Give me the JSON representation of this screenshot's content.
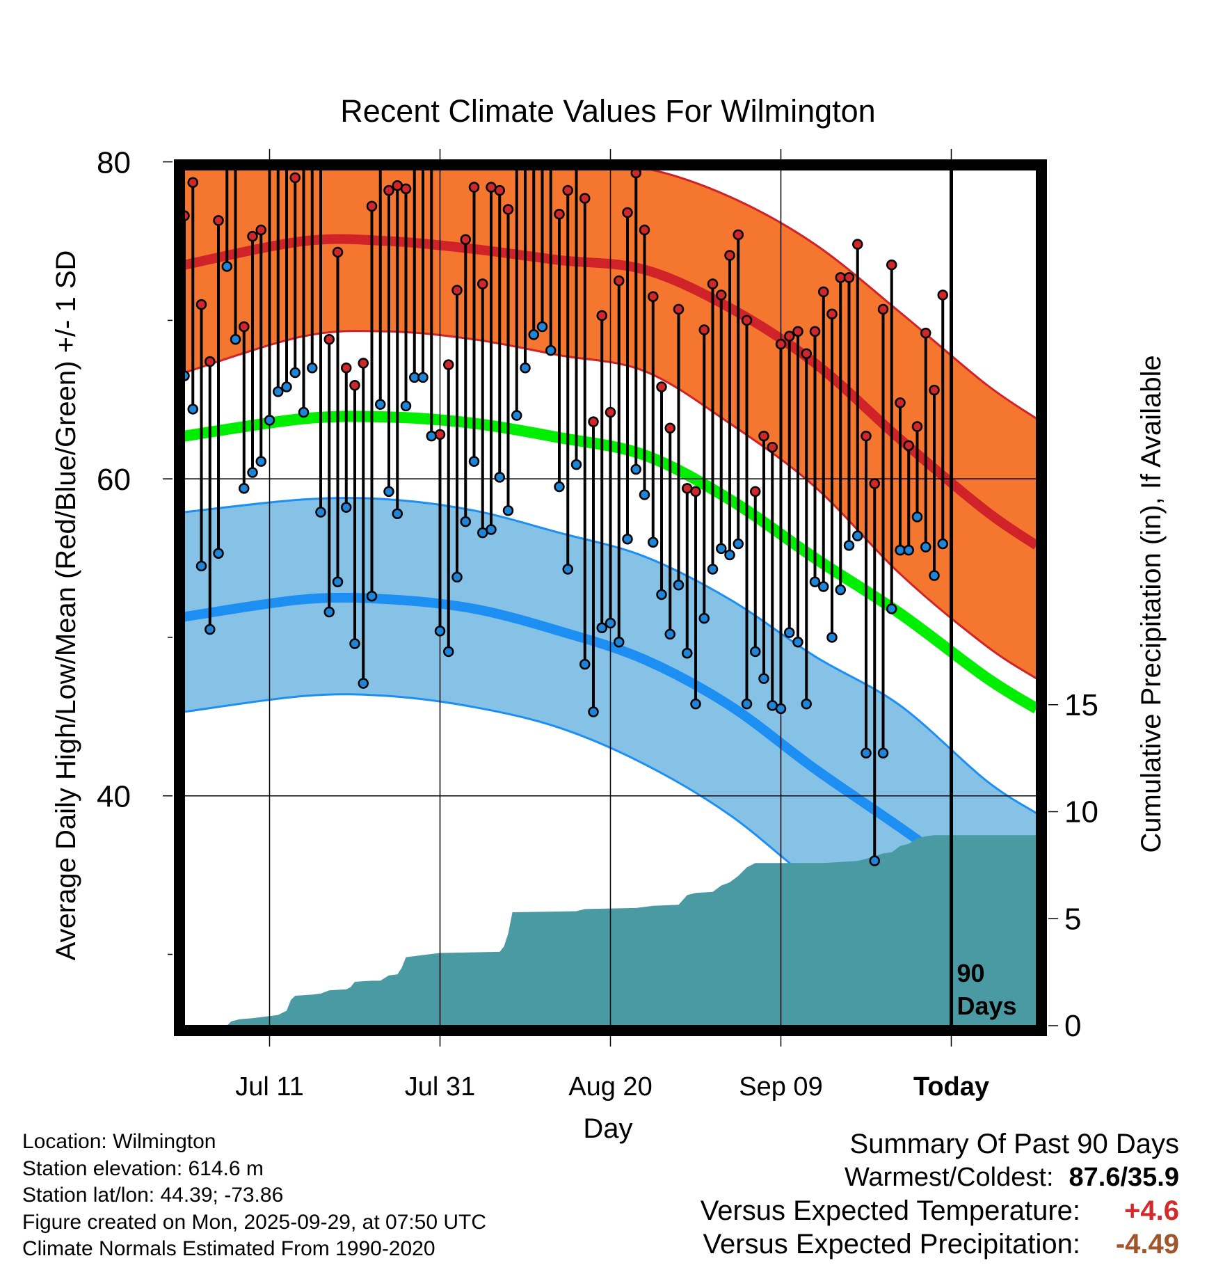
{
  "title": "Recent Climate Values For Wilmington",
  "chart_data": {
    "type": "line",
    "title": "Recent Climate Values For Wilmington",
    "xlabel": "Day",
    "ylabel": "Average Daily High/Low/Mean (Red/Blue/Green) +/- 1 SD",
    "y2label": "Cumulative Precipitation (in), If Available",
    "x_tick_labels": [
      "Jul 11",
      "Jul 31",
      "Aug 20",
      "Sep 09",
      "Today"
    ],
    "x_tick_days": [
      10,
      30,
      50,
      70,
      90
    ],
    "xlim": [
      0,
      100
    ],
    "ylim": [
      25.5,
      79.5
    ],
    "y_ticks": [
      40,
      60,
      80
    ],
    "y_tick_labels": [
      "40",
      "60",
      "80"
    ],
    "y2lim": [
      0,
      40
    ],
    "y2_ticks": [
      0,
      5,
      10,
      15
    ],
    "y2_tick_labels": [
      "0",
      "5",
      "10",
      "15"
    ],
    "today_day": 90,
    "today_annotation": [
      "90",
      "Days"
    ],
    "normals": {
      "high_mean": [
        [
          0,
          73.5
        ],
        [
          14,
          75.0
        ],
        [
          24,
          75.0
        ],
        [
          34,
          74.5
        ],
        [
          44,
          73.8
        ],
        [
          54,
          73.2
        ],
        [
          64,
          70.8
        ],
        [
          74,
          67.3
        ],
        [
          84,
          62.5
        ],
        [
          94,
          58.0
        ],
        [
          100,
          55.8
        ]
      ],
      "high_plus_sd": [
        [
          0,
          80.3
        ],
        [
          14,
          81.0
        ],
        [
          24,
          81.0
        ],
        [
          34,
          80.5
        ],
        [
          44,
          80.0
        ],
        [
          54,
          79.6
        ],
        [
          64,
          77.8
        ],
        [
          74,
          74.8
        ],
        [
          84,
          70.5
        ],
        [
          94,
          66.0
        ],
        [
          100,
          63.8
        ]
      ],
      "high_minus_sd": [
        [
          0,
          66.7
        ],
        [
          14,
          69.0
        ],
        [
          24,
          69.3
        ],
        [
          34,
          68.8
        ],
        [
          44,
          67.8
        ],
        [
          54,
          66.8
        ],
        [
          64,
          63.5
        ],
        [
          74,
          59.5
        ],
        [
          84,
          54.0
        ],
        [
          94,
          49.5
        ],
        [
          100,
          47.4
        ]
      ],
      "mean": [
        [
          0,
          62.7
        ],
        [
          14,
          63.8
        ],
        [
          24,
          63.9
        ],
        [
          34,
          63.5
        ],
        [
          44,
          62.6
        ],
        [
          54,
          61.5
        ],
        [
          64,
          58.7
        ],
        [
          74,
          55.0
        ],
        [
          84,
          51.5
        ],
        [
          94,
          47.5
        ],
        [
          100,
          45.5
        ]
      ],
      "low_mean": [
        [
          0,
          51.3
        ],
        [
          14,
          52.4
        ],
        [
          24,
          52.4
        ],
        [
          34,
          51.8
        ],
        [
          44,
          50.4
        ],
        [
          54,
          48.6
        ],
        [
          64,
          45.7
        ],
        [
          74,
          41.7
        ],
        [
          84,
          38.0
        ],
        [
          94,
          34.2
        ],
        [
          100,
          32.3
        ]
      ],
      "low_plus_sd": [
        [
          0,
          57.9
        ],
        [
          14,
          58.7
        ],
        [
          24,
          58.7
        ],
        [
          34,
          58.0
        ],
        [
          44,
          56.6
        ],
        [
          54,
          55.1
        ],
        [
          64,
          52.4
        ],
        [
          74,
          48.8
        ],
        [
          84,
          45.7
        ],
        [
          94,
          41.0
        ],
        [
          100,
          38.9
        ]
      ],
      "low_minus_sd": [
        [
          0,
          45.3
        ],
        [
          14,
          46.3
        ],
        [
          24,
          46.3
        ],
        [
          34,
          45.6
        ],
        [
          44,
          44.3
        ],
        [
          54,
          42.0
        ],
        [
          64,
          38.8
        ],
        [
          74,
          34.5
        ],
        [
          84,
          31.0
        ],
        [
          94,
          27.0
        ],
        [
          100,
          25.5
        ]
      ]
    },
    "daily_high": [
      76.6,
      78.7,
      71.0,
      67.4,
      76.3,
      85.8,
      87.4,
      69.6,
      75.3,
      75.7,
      82.1,
      83.2,
      84.6,
      79.0,
      82.8,
      87.6,
      82.6,
      68.8,
      74.3,
      67.0,
      65.9,
      67.3,
      77.2,
      85.5,
      78.2,
      78.5,
      78.3,
      83.9,
      80.9,
      80.8,
      62.8,
      67.2,
      71.9,
      75.1,
      78.4,
      72.3,
      78.4,
      78.2,
      77.0,
      81.2,
      86.0,
      87.6,
      87.6,
      82.1,
      76.7,
      78.2,
      83.2,
      77.7,
      63.6,
      70.3,
      64.2,
      72.5,
      76.8,
      79.3,
      75.7,
      71.5,
      65.8,
      63.2,
      70.7,
      59.4,
      59.2,
      69.4,
      72.3,
      71.6,
      74.1,
      75.4,
      70.0,
      59.2,
      62.7,
      62.0,
      68.5,
      69.0,
      69.3,
      67.9,
      69.3,
      71.8,
      70.4,
      72.7,
      72.7,
      74.8,
      62.7,
      59.7,
      70.7,
      73.5,
      64.8,
      62.1,
      63.3,
      69.2,
      65.6,
      71.6
    ],
    "daily_low": [
      66.5,
      64.4,
      54.5,
      50.5,
      55.3,
      73.4,
      68.8,
      59.4,
      60.4,
      61.1,
      63.7,
      65.5,
      65.8,
      66.7,
      64.2,
      67.0,
      57.9,
      51.6,
      53.5,
      58.2,
      49.6,
      47.1,
      52.6,
      64.7,
      59.2,
      57.8,
      64.6,
      66.4,
      66.4,
      62.7,
      50.4,
      49.1,
      53.8,
      57.3,
      61.1,
      56.6,
      56.8,
      60.1,
      58.0,
      64.0,
      67.0,
      69.1,
      69.6,
      68.1,
      59.5,
      54.3,
      60.9,
      48.3,
      45.3,
      50.6,
      50.9,
      49.7,
      56.2,
      60.6,
      59.0,
      56.0,
      52.7,
      50.2,
      53.3,
      49.0,
      45.8,
      51.2,
      54.3,
      55.6,
      55.2,
      55.9,
      45.8,
      49.1,
      47.4,
      45.7,
      45.5,
      50.3,
      49.7,
      45.8,
      53.5,
      53.2,
      50.0,
      53.0,
      55.8,
      56.4,
      42.7,
      35.9,
      42.7,
      51.8,
      55.5,
      55.5,
      57.6,
      55.7,
      53.9,
      55.9
    ],
    "cumulative_precip": [
      [
        0,
        0
      ],
      [
        5,
        0
      ],
      [
        5.5,
        0.2
      ],
      [
        6.5,
        0.3
      ],
      [
        8,
        0.35
      ],
      [
        9,
        0.4
      ],
      [
        10,
        0.45
      ],
      [
        11,
        0.5
      ],
      [
        12,
        0.7
      ],
      [
        12.5,
        1.2
      ],
      [
        13,
        1.4
      ],
      [
        15,
        1.45
      ],
      [
        16,
        1.5
      ],
      [
        17,
        1.65
      ],
      [
        19,
        1.7
      ],
      [
        19.5,
        1.8
      ],
      [
        20,
        2.05
      ],
      [
        22,
        2.1
      ],
      [
        23,
        2.1
      ],
      [
        24,
        2.35
      ],
      [
        25,
        2.4
      ],
      [
        25.5,
        2.7
      ],
      [
        26,
        3.2
      ],
      [
        28,
        3.3
      ],
      [
        30,
        3.4
      ],
      [
        37,
        3.45
      ],
      [
        37.5,
        3.7
      ],
      [
        38,
        4.3
      ],
      [
        38.5,
        5.3
      ],
      [
        46,
        5.35
      ],
      [
        47,
        5.45
      ],
      [
        53,
        5.5
      ],
      [
        55,
        5.6
      ],
      [
        58,
        5.65
      ],
      [
        59,
        6.1
      ],
      [
        60,
        6.2
      ],
      [
        62,
        6.25
      ],
      [
        63,
        6.55
      ],
      [
        64,
        6.7
      ],
      [
        65,
        7.0
      ],
      [
        66,
        7.4
      ],
      [
        67,
        7.6
      ],
      [
        68,
        7.6
      ],
      [
        69,
        7.6
      ],
      [
        75,
        7.6
      ],
      [
        79,
        7.7
      ],
      [
        80,
        7.8
      ],
      [
        82,
        8.05
      ],
      [
        83,
        8.1
      ],
      [
        84,
        8.4
      ],
      [
        85,
        8.5
      ],
      [
        86,
        8.75
      ],
      [
        87,
        8.85
      ],
      [
        88,
        8.9
      ],
      [
        100,
        8.9
      ]
    ]
  },
  "footer": {
    "location": "Location: Wilmington",
    "elevation": "Station elevation: 614.6 m",
    "latlon": "Station lat/lon: 44.39; -73.86",
    "created": "Figure created on Mon, 2025-09-29, at 07:50 UTC",
    "normals": "Climate Normals Estimated From 1990-2020"
  },
  "summary": {
    "heading": "Summary Of Past 90 Days",
    "warm_cold_label": "Warmest/Coldest:",
    "warm_cold_value": "87.6/35.9",
    "temp_label": "Versus Expected Temperature:",
    "temp_value": "+4.6",
    "precip_label": "Versus Expected Precipitation:",
    "precip_value": "-4.49"
  },
  "colors": {
    "high_band": "#f5762e",
    "high_line": "#cf2229",
    "mean_line": "#00ee00",
    "low_band": "#86c2e6",
    "low_line": "#1e8ff2",
    "precip_fill": "#4a9aa3",
    "high_dot": "#d0282a",
    "low_dot": "#1f85d8",
    "temp_summary": "#d42a2a",
    "precip_summary": "#a0552a"
  }
}
